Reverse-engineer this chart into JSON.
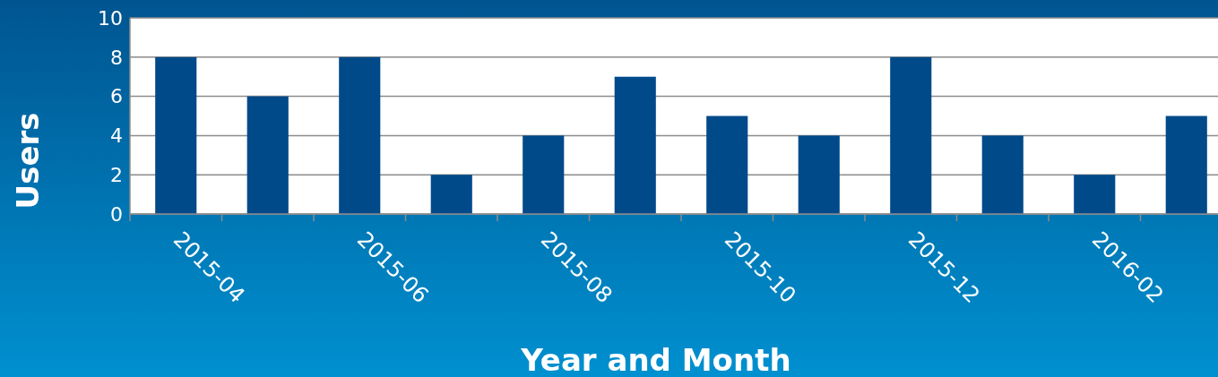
{
  "chart_data": {
    "type": "bar",
    "xlabel": "Year and Month",
    "ylabel": "Users",
    "categories": [
      "2015-04",
      null,
      "2015-06",
      null,
      "2015-08",
      null,
      "2015-10",
      null,
      "2015-12",
      null,
      "2016-02",
      null
    ],
    "values": [
      8,
      6,
      8,
      2,
      4,
      7,
      5,
      4,
      8,
      4,
      2,
      5
    ],
    "color": "#004a8a",
    "ylim": [
      0,
      10
    ],
    "yticks": [
      0,
      2,
      4,
      6,
      8,
      10
    ],
    "grid": "y"
  }
}
